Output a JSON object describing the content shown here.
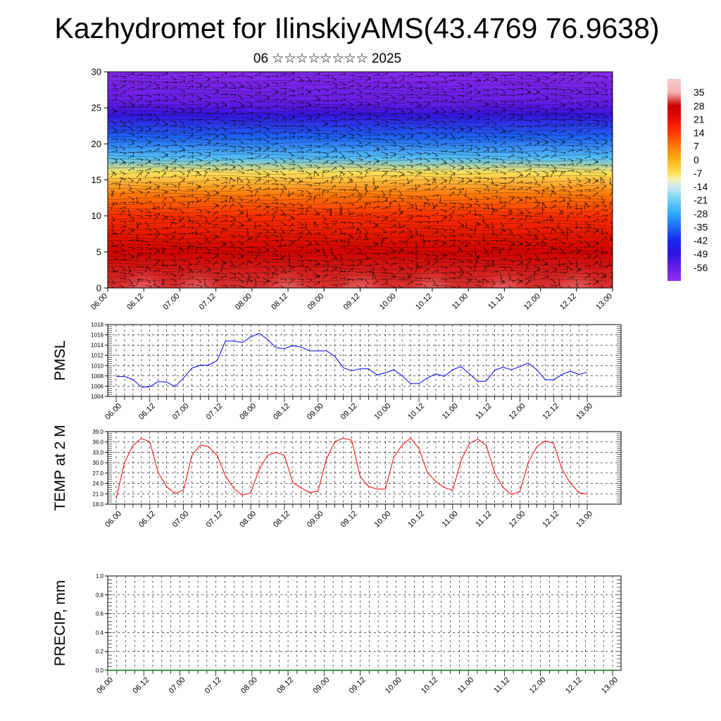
{
  "header": {
    "title": "Kazhydromet for IlinskiyAMS(43.4769 76.9638)",
    "date_line": "06 ☆☆☆☆☆☆☆☆ 2025"
  },
  "colors": {
    "pmsl_line": "#0000ff",
    "temp_line": "#ff0000",
    "precip_line": "#008000",
    "grid": "#000000"
  },
  "chart_data": [
    {
      "id": "cross_section",
      "type": "heatmap",
      "title": "",
      "xlabel": "",
      "ylabel": "",
      "x_tick_labels": [
        "06.00",
        "06.12",
        "07.00",
        "07.12",
        "08.00",
        "08.12",
        "09.00",
        "09.12",
        "10.00",
        "10.12",
        "11.00",
        "11.12",
        "12.00",
        "12.12",
        "13.00"
      ],
      "ylim": [
        0,
        30
      ],
      "y_ticks": [
        0,
        5,
        10,
        15,
        20,
        25,
        30
      ],
      "colorbar": {
        "labels": [
          "35",
          "28",
          "21",
          "14",
          "7",
          "0",
          "-7",
          "-14",
          "-21",
          "-28",
          "-35",
          "-42",
          "-49",
          "-56"
        ],
        "values": [
          35,
          28,
          21,
          14,
          7,
          0,
          -7,
          -14,
          -21,
          -28,
          -35,
          -42,
          -49,
          -56
        ]
      },
      "overlay": "wind barbs",
      "profile": [
        {
          "level": 0,
          "value": 30
        },
        {
          "level": 5,
          "value": 26
        },
        {
          "level": 10,
          "value": 16
        },
        {
          "level": 13,
          "value": 7
        },
        {
          "level": 16,
          "value": -7
        },
        {
          "level": 18,
          "value": -24
        },
        {
          "level": 21,
          "value": -36
        },
        {
          "level": 24,
          "value": -50
        },
        {
          "level": 26,
          "value": -56
        },
        {
          "level": 30,
          "value": -61
        }
      ],
      "warm_cores": [
        6.5,
        7.25,
        8.5,
        9.5,
        10.5,
        11.5,
        12.5
      ]
    },
    {
      "id": "pmsl",
      "type": "line",
      "ylabel": "PMSL",
      "ylim": [
        1004,
        1018
      ],
      "y_ticks": [
        1004,
        1006,
        1008,
        1010,
        1012,
        1014,
        1016,
        1018
      ],
      "x_tick_labels": [
        "06.00",
        "06.12",
        "07.00",
        "07.12",
        "08.00",
        "08.12",
        "09.00",
        "09.12",
        "10.00",
        "10.12",
        "11.00",
        "11.12",
        "12.00",
        "12.12",
        "13.00"
      ],
      "series": [
        {
          "values": [
            1007.9,
            1007.9,
            1007.3,
            1005.8,
            1005.9,
            1006.9,
            1006.8,
            1005.9,
            1007.6,
            1009.5,
            1010.1,
            1010.1,
            1011.0,
            1014.8,
            1014.8,
            1014.5,
            1015.6,
            1016.3,
            1015.1,
            1013.5,
            1013.3,
            1013.9,
            1013.6,
            1012.9,
            1012.9,
            1012.9,
            1011.8,
            1009.6,
            1009.0,
            1009.4,
            1009.4,
            1008.2,
            1008.6,
            1009.2,
            1008.0,
            1006.5,
            1006.5,
            1007.6,
            1008.4,
            1007.9,
            1009.2,
            1009.8,
            1008.4,
            1006.9,
            1007.0,
            1009.1,
            1009.7,
            1009.2,
            1009.8,
            1010.5,
            1009.2,
            1007.3,
            1007.2,
            1008.3,
            1008.9,
            1008.3,
            1008.7
          ]
        }
      ]
    },
    {
      "id": "temp",
      "type": "line",
      "ylabel": "TEMP at 2 M",
      "ylim": [
        18.0,
        39.0
      ],
      "y_ticks": [
        "18.0",
        "21.0",
        "24.0",
        "27.0",
        "30.0",
        "33.0",
        "36.0",
        "39.0"
      ],
      "x_tick_labels": [
        "06.00",
        "06.12",
        "07.00",
        "07.12",
        "08.00",
        "08.12",
        "09.00",
        "09.12",
        "10.00",
        "10.12",
        "11.00",
        "11.12",
        "12.00",
        "12.12",
        "13.00"
      ],
      "series": [
        {
          "values": [
            19.6,
            30.1,
            35.0,
            37.0,
            36.1,
            27.1,
            23.1,
            21.0,
            22.1,
            32.1,
            35.1,
            34.6,
            32.1,
            26.1,
            22.5,
            20.6,
            21.3,
            28.1,
            32.1,
            33.0,
            32.1,
            24.2,
            22.7,
            21.3,
            21.8,
            31.1,
            36.1,
            37.1,
            36.5,
            26.1,
            23.1,
            22.4,
            22.3,
            31.6,
            35.1,
            37.1,
            34.1,
            27.1,
            24.6,
            22.8,
            22.0,
            30.6,
            35.6,
            36.8,
            35.0,
            27.1,
            22.8,
            20.8,
            21.7,
            30.1,
            34.6,
            36.3,
            35.6,
            28.1,
            24.1,
            21.3,
            20.9
          ]
        }
      ]
    },
    {
      "id": "precip",
      "type": "line",
      "ylabel": "PRECIP, mm",
      "ylim": [
        0.0,
        1.0
      ],
      "y_ticks": [
        "0.0",
        "0.2",
        "0.4",
        "0.6",
        "0.8",
        "1.0"
      ],
      "x_tick_labels": [
        "06.00",
        "06.12",
        "07.00",
        "07.12",
        "08.00",
        "08.12",
        "09.00",
        "09.12",
        "10.00",
        "10.12",
        "11.00",
        "11.12",
        "12.00",
        "12.12",
        "13.00"
      ],
      "series": [
        {
          "values": [
            0,
            0,
            0,
            0,
            0,
            0,
            0,
            0,
            0,
            0,
            0,
            0,
            0,
            0,
            0,
            0,
            0,
            0,
            0,
            0,
            0,
            0,
            0,
            0,
            0,
            0,
            0,
            0,
            0,
            0,
            0,
            0,
            0,
            0,
            0,
            0,
            0,
            0,
            0,
            0,
            0,
            0,
            0,
            0,
            0,
            0,
            0,
            0,
            0,
            0,
            0,
            0,
            0,
            0,
            0,
            0,
            0
          ]
        }
      ]
    }
  ]
}
